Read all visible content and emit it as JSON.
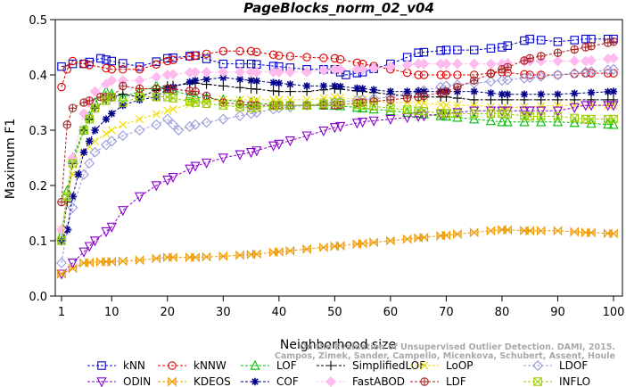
{
  "chart_data": {
    "type": "line",
    "title": "PageBlocks_norm_02_v04",
    "xlabel": "Neighborhood size",
    "ylabel": "Maximum F1",
    "xlim": [
      1,
      100
    ],
    "ylim": [
      0.0,
      0.5
    ],
    "xticks": [
      1,
      10,
      20,
      30,
      40,
      50,
      60,
      70,
      80,
      90,
      100
    ],
    "yticks": [
      "0.0",
      "0.1",
      "0.2",
      "0.3",
      "0.4",
      "0.5"
    ],
    "grid": false,
    "legend_position": "bottom",
    "watermark": [
      "On the Evaluation of Unsupervised Outlier Detection. DAMI, 2015.",
      "Campos, Zimek, Sander, Campello, Micenkova, Schubert, Assent, Houle"
    ],
    "series": [
      {
        "name": "kNN",
        "color": "#0000cc",
        "marker": "square",
        "points": [
          [
            1,
            0.415
          ],
          [
            3,
            0.42
          ],
          [
            5,
            0.42
          ],
          [
            8,
            0.43
          ],
          [
            10,
            0.425
          ],
          [
            15,
            0.415
          ],
          [
            20,
            0.43
          ],
          [
            25,
            0.435
          ],
          [
            30,
            0.42
          ],
          [
            35,
            0.42
          ],
          [
            40,
            0.415
          ],
          [
            45,
            0.41
          ],
          [
            50,
            0.41
          ],
          [
            52,
            0.4
          ],
          [
            55,
            0.405
          ],
          [
            60,
            0.42
          ],
          [
            65,
            0.44
          ],
          [
            70,
            0.445
          ],
          [
            75,
            0.445
          ],
          [
            80,
            0.45
          ],
          [
            85,
            0.465
          ],
          [
            90,
            0.46
          ],
          [
            95,
            0.465
          ],
          [
            100,
            0.465
          ]
        ]
      },
      {
        "name": "kNNW",
        "color": "#dd0000",
        "marker": "circle",
        "points": [
          [
            1,
            0.378
          ],
          [
            2,
            0.41
          ],
          [
            3,
            0.425
          ],
          [
            5,
            0.42
          ],
          [
            10,
            0.41
          ],
          [
            15,
            0.41
          ],
          [
            20,
            0.425
          ],
          [
            25,
            0.435
          ],
          [
            30,
            0.443
          ],
          [
            35,
            0.443
          ],
          [
            40,
            0.435
          ],
          [
            45,
            0.432
          ],
          [
            50,
            0.43
          ],
          [
            55,
            0.42
          ],
          [
            60,
            0.41
          ],
          [
            65,
            0.4
          ],
          [
            70,
            0.4
          ],
          [
            75,
            0.4
          ],
          [
            80,
            0.405
          ],
          [
            85,
            0.4
          ],
          [
            90,
            0.4
          ],
          [
            95,
            0.403
          ],
          [
            100,
            0.403
          ]
        ]
      },
      {
        "name": "LOF",
        "color": "#00bb00",
        "marker": "triangle-up",
        "points": [
          [
            1,
            0.11
          ],
          [
            2,
            0.19
          ],
          [
            3,
            0.25
          ],
          [
            5,
            0.3
          ],
          [
            7,
            0.35
          ],
          [
            9,
            0.37
          ],
          [
            10,
            0.365
          ],
          [
            12,
            0.36
          ],
          [
            15,
            0.37
          ],
          [
            18,
            0.38
          ],
          [
            20,
            0.375
          ],
          [
            25,
            0.36
          ],
          [
            30,
            0.355
          ],
          [
            35,
            0.35
          ],
          [
            40,
            0.345
          ],
          [
            45,
            0.345
          ],
          [
            50,
            0.345
          ],
          [
            55,
            0.34
          ],
          [
            60,
            0.335
          ],
          [
            65,
            0.33
          ],
          [
            70,
            0.325
          ],
          [
            75,
            0.32
          ],
          [
            80,
            0.315
          ],
          [
            90,
            0.315
          ],
          [
            100,
            0.31
          ]
        ]
      },
      {
        "name": "SimplifiedLOF",
        "color": "#000000",
        "marker": "plus",
        "points": [
          [
            1,
            0.1
          ],
          [
            2,
            0.17
          ],
          [
            3,
            0.24
          ],
          [
            5,
            0.3
          ],
          [
            7,
            0.34
          ],
          [
            9,
            0.355
          ],
          [
            10,
            0.36
          ],
          [
            12,
            0.365
          ],
          [
            15,
            0.36
          ],
          [
            20,
            0.38
          ],
          [
            25,
            0.385
          ],
          [
            30,
            0.38
          ],
          [
            35,
            0.375
          ],
          [
            40,
            0.37
          ],
          [
            45,
            0.37
          ],
          [
            50,
            0.375
          ],
          [
            55,
            0.37
          ],
          [
            60,
            0.365
          ],
          [
            65,
            0.36
          ],
          [
            70,
            0.36
          ],
          [
            75,
            0.355
          ],
          [
            80,
            0.355
          ],
          [
            90,
            0.355
          ],
          [
            100,
            0.355
          ]
        ]
      },
      {
        "name": "LoOP",
        "color": "#eedd00",
        "marker": "x",
        "points": [
          [
            1,
            0.12
          ],
          [
            2,
            0.18
          ],
          [
            3,
            0.22
          ],
          [
            5,
            0.26
          ],
          [
            7,
            0.28
          ],
          [
            10,
            0.3
          ],
          [
            12,
            0.31
          ],
          [
            15,
            0.32
          ],
          [
            20,
            0.335
          ],
          [
            25,
            0.35
          ],
          [
            30,
            0.355
          ],
          [
            35,
            0.355
          ],
          [
            40,
            0.355
          ],
          [
            45,
            0.355
          ],
          [
            50,
            0.36
          ],
          [
            55,
            0.355
          ],
          [
            60,
            0.35
          ],
          [
            65,
            0.35
          ],
          [
            70,
            0.345
          ],
          [
            75,
            0.345
          ],
          [
            80,
            0.34
          ],
          [
            90,
            0.345
          ],
          [
            100,
            0.345
          ]
        ]
      },
      {
        "name": "LDOF",
        "color": "#9999dd",
        "marker": "diamond",
        "points": [
          [
            1,
            0.06
          ],
          [
            2,
            0.12
          ],
          [
            3,
            0.16
          ],
          [
            5,
            0.22
          ],
          [
            7,
            0.26
          ],
          [
            10,
            0.28
          ],
          [
            12,
            0.29
          ],
          [
            15,
            0.3
          ],
          [
            18,
            0.31
          ],
          [
            20,
            0.32
          ],
          [
            22,
            0.3
          ],
          [
            25,
            0.31
          ],
          [
            30,
            0.32
          ],
          [
            35,
            0.33
          ],
          [
            40,
            0.34
          ],
          [
            45,
            0.345
          ],
          [
            50,
            0.35
          ],
          [
            55,
            0.355
          ],
          [
            60,
            0.36
          ],
          [
            65,
            0.37
          ],
          [
            70,
            0.38
          ],
          [
            75,
            0.385
          ],
          [
            80,
            0.39
          ],
          [
            85,
            0.395
          ],
          [
            90,
            0.4
          ],
          [
            95,
            0.405
          ],
          [
            100,
            0.41
          ]
        ]
      },
      {
        "name": "ODIN",
        "color": "#8800cc",
        "marker": "triangle-down",
        "points": [
          [
            1,
            0.04
          ],
          [
            3,
            0.06
          ],
          [
            5,
            0.08
          ],
          [
            7,
            0.1
          ],
          [
            10,
            0.125
          ],
          [
            12,
            0.155
          ],
          [
            15,
            0.18
          ],
          [
            18,
            0.2
          ],
          [
            20,
            0.21
          ],
          [
            25,
            0.235
          ],
          [
            30,
            0.25
          ],
          [
            35,
            0.26
          ],
          [
            40,
            0.275
          ],
          [
            45,
            0.29
          ],
          [
            50,
            0.305
          ],
          [
            55,
            0.315
          ],
          [
            60,
            0.32
          ],
          [
            65,
            0.325
          ],
          [
            70,
            0.33
          ],
          [
            75,
            0.335
          ],
          [
            80,
            0.335
          ],
          [
            85,
            0.335
          ],
          [
            90,
            0.335
          ],
          [
            95,
            0.345
          ],
          [
            100,
            0.345
          ]
        ]
      },
      {
        "name": "KDEOS",
        "color": "#ee9900",
        "marker": "bowtie",
        "points": [
          [
            1,
            0.04
          ],
          [
            3,
            0.05
          ],
          [
            5,
            0.06
          ],
          [
            8,
            0.062
          ],
          [
            10,
            0.062
          ],
          [
            15,
            0.065
          ],
          [
            20,
            0.07
          ],
          [
            25,
            0.07
          ],
          [
            30,
            0.072
          ],
          [
            35,
            0.075
          ],
          [
            40,
            0.08
          ],
          [
            45,
            0.085
          ],
          [
            50,
            0.09
          ],
          [
            55,
            0.095
          ],
          [
            60,
            0.1
          ],
          [
            65,
            0.105
          ],
          [
            70,
            0.11
          ],
          [
            75,
            0.115
          ],
          [
            80,
            0.12
          ],
          [
            85,
            0.118
          ],
          [
            90,
            0.118
          ],
          [
            95,
            0.115
          ],
          [
            100,
            0.113
          ]
        ]
      },
      {
        "name": "COF",
        "color": "#000088",
        "marker": "star",
        "points": [
          [
            1,
            0.1
          ],
          [
            2,
            0.12
          ],
          [
            3,
            0.18
          ],
          [
            4,
            0.22
          ],
          [
            5,
            0.26
          ],
          [
            7,
            0.3
          ],
          [
            10,
            0.33
          ],
          [
            12,
            0.345
          ],
          [
            15,
            0.355
          ],
          [
            18,
            0.36
          ],
          [
            20,
            0.375
          ],
          [
            25,
            0.39
          ],
          [
            30,
            0.395
          ],
          [
            35,
            0.39
          ],
          [
            40,
            0.385
          ],
          [
            45,
            0.38
          ],
          [
            50,
            0.38
          ],
          [
            55,
            0.375
          ],
          [
            60,
            0.37
          ],
          [
            65,
            0.37
          ],
          [
            70,
            0.37
          ],
          [
            75,
            0.37
          ],
          [
            80,
            0.365
          ],
          [
            90,
            0.365
          ],
          [
            100,
            0.37
          ]
        ]
      },
      {
        "name": "FastABOD",
        "color": "#ffbbee",
        "marker": "diamond-filled",
        "points": [
          [
            1,
            0.12
          ],
          [
            3,
            0.25
          ],
          [
            5,
            0.33
          ],
          [
            7,
            0.37
          ],
          [
            10,
            0.39
          ],
          [
            15,
            0.39
          ],
          [
            20,
            0.4
          ],
          [
            25,
            0.405
          ],
          [
            30,
            0.405
          ],
          [
            35,
            0.405
          ],
          [
            40,
            0.405
          ],
          [
            45,
            0.405
          ],
          [
            50,
            0.41
          ],
          [
            55,
            0.41
          ],
          [
            60,
            0.415
          ],
          [
            65,
            0.42
          ],
          [
            70,
            0.42
          ],
          [
            75,
            0.42
          ],
          [
            80,
            0.42
          ],
          [
            85,
            0.425
          ],
          [
            90,
            0.425
          ],
          [
            95,
            0.425
          ],
          [
            100,
            0.43
          ]
        ]
      },
      {
        "name": "LDF",
        "color": "#aa2222",
        "marker": "circle-plus",
        "points": [
          [
            1,
            0.17
          ],
          [
            2,
            0.31
          ],
          [
            3,
            0.34
          ],
          [
            5,
            0.35
          ],
          [
            8,
            0.36
          ],
          [
            10,
            0.36
          ],
          [
            12,
            0.38
          ],
          [
            15,
            0.375
          ],
          [
            20,
            0.375
          ],
          [
            25,
            0.37
          ],
          [
            30,
            0.35
          ],
          [
            35,
            0.345
          ],
          [
            40,
            0.345
          ],
          [
            45,
            0.345
          ],
          [
            50,
            0.345
          ],
          [
            55,
            0.35
          ],
          [
            60,
            0.355
          ],
          [
            65,
            0.36
          ],
          [
            70,
            0.37
          ],
          [
            75,
            0.39
          ],
          [
            80,
            0.41
          ],
          [
            85,
            0.43
          ],
          [
            90,
            0.44
          ],
          [
            95,
            0.45
          ],
          [
            100,
            0.46
          ]
        ]
      },
      {
        "name": "INFLO",
        "color": "#99cc00",
        "marker": "square-x",
        "points": [
          [
            1,
            0.1
          ],
          [
            2,
            0.18
          ],
          [
            3,
            0.24
          ],
          [
            5,
            0.3
          ],
          [
            7,
            0.34
          ],
          [
            10,
            0.36
          ],
          [
            12,
            0.35
          ],
          [
            15,
            0.36
          ],
          [
            20,
            0.36
          ],
          [
            25,
            0.35
          ],
          [
            30,
            0.345
          ],
          [
            35,
            0.34
          ],
          [
            40,
            0.345
          ],
          [
            45,
            0.345
          ],
          [
            50,
            0.35
          ],
          [
            55,
            0.345
          ],
          [
            60,
            0.34
          ],
          [
            65,
            0.335
          ],
          [
            70,
            0.33
          ],
          [
            75,
            0.33
          ],
          [
            80,
            0.33
          ],
          [
            85,
            0.325
          ],
          [
            90,
            0.325
          ],
          [
            95,
            0.32
          ],
          [
            100,
            0.32
          ]
        ]
      }
    ]
  }
}
